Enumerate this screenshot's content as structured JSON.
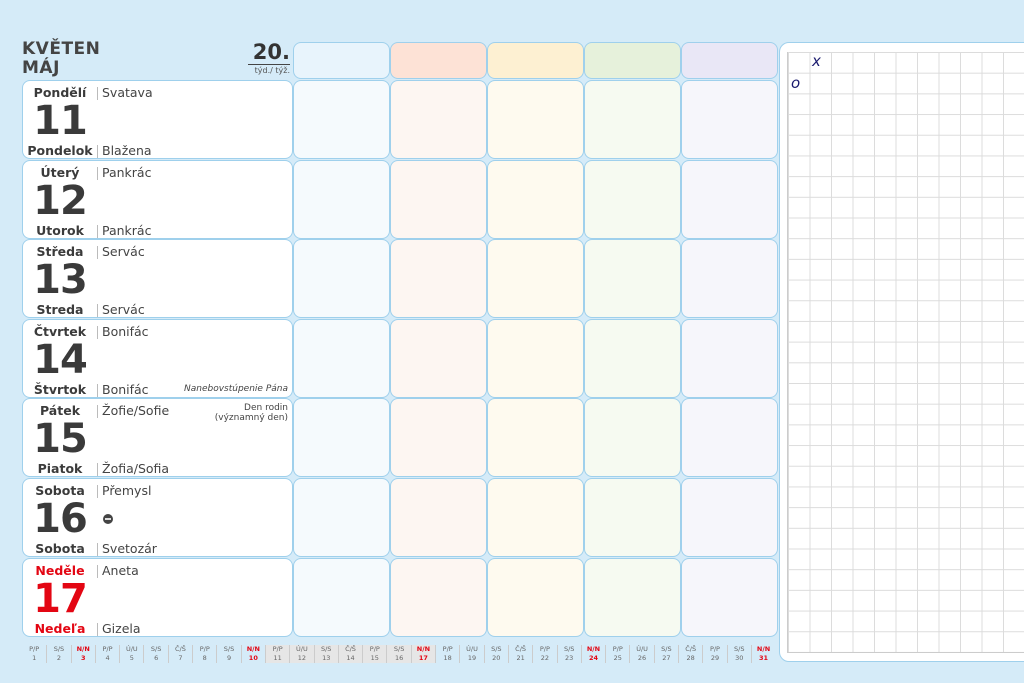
{
  "header": {
    "month_cz": "KVĚTEN",
    "month_sk": "MÁJ",
    "week_number": "20.",
    "week_label": "týd./ týž."
  },
  "column_colors": {
    "headers": [
      "#e8f4fc",
      "#fde2d6",
      "#fdf0d2",
      "#e6f1db",
      "#e9e7f6"
    ],
    "cells": [
      "#f5fafd",
      "#fdf6f2",
      "#fefaef",
      "#f6faf1",
      "#f6f6fb"
    ]
  },
  "days": [
    {
      "name_cz": "Pondělí",
      "name_sk": "Pondelok",
      "number": "11",
      "nameday_cz": "Svatava",
      "nameday_sk": "Blažena",
      "sunday": false
    },
    {
      "name_cz": "Úterý",
      "name_sk": "Utorok",
      "number": "12",
      "nameday_cz": "Pankrác",
      "nameday_sk": "Pankrác",
      "sunday": false
    },
    {
      "name_cz": "Středa",
      "name_sk": "Streda",
      "number": "13",
      "nameday_cz": "Servác",
      "nameday_sk": "Servác",
      "sunday": false
    },
    {
      "name_cz": "Čtvrtek",
      "name_sk": "Štvrtok",
      "number": "14",
      "nameday_cz": "Bonifác",
      "nameday_sk": "Bonifác",
      "note_bottom": "Nanebovstúpenie Pána",
      "sunday": false
    },
    {
      "name_cz": "Pátek",
      "name_sk": "Piatok",
      "number": "15",
      "nameday_cz": "Žofie/Sofie",
      "nameday_sk": "Žofia/Sofia",
      "note_top": "Den rodin",
      "note_top2": "(významný den)",
      "sunday": false
    },
    {
      "name_cz": "Sobota",
      "name_sk": "Sobota",
      "number": "16",
      "nameday_cz": "Přemysl",
      "nameday_sk": "Svetozár",
      "icon": "full-moon-icon",
      "sunday": false
    },
    {
      "name_cz": "Neděle",
      "name_sk": "Nedeľa",
      "number": "17",
      "nameday_cz": "Aneta",
      "nameday_sk": "Gizela",
      "sunday": true
    }
  ],
  "grid_marks": {
    "x": "x",
    "o": "o"
  },
  "month_strip": [
    [
      "P/P",
      "1"
    ],
    [
      "S/S",
      "2"
    ],
    [
      "N/N",
      "3"
    ],
    [
      "P/P",
      "4"
    ],
    [
      "Ú/U",
      "5"
    ],
    [
      "S/S",
      "6"
    ],
    [
      "Č/Š",
      "7"
    ],
    [
      "P/P",
      "8"
    ],
    [
      "S/S",
      "9"
    ],
    [
      "N/N",
      "10"
    ],
    [
      "P/P",
      "11"
    ],
    [
      "Ú/U",
      "12"
    ],
    [
      "S/S",
      "13"
    ],
    [
      "Č/Š",
      "14"
    ],
    [
      "P/P",
      "15"
    ],
    [
      "S/S",
      "16"
    ],
    [
      "N/N",
      "17"
    ],
    [
      "P/P",
      "18"
    ],
    [
      "Ú/U",
      "19"
    ],
    [
      "S/S",
      "20"
    ],
    [
      "Č/Š",
      "21"
    ],
    [
      "P/P",
      "22"
    ],
    [
      "S/S",
      "23"
    ],
    [
      "N/N",
      "24"
    ],
    [
      "P/P",
      "25"
    ],
    [
      "Ú/U",
      "26"
    ],
    [
      "S/S",
      "27"
    ],
    [
      "Č/Š",
      "28"
    ],
    [
      "P/P",
      "29"
    ],
    [
      "S/S",
      "30"
    ],
    [
      "N/N",
      "31"
    ]
  ],
  "current_week_days": [
    "11",
    "12",
    "13",
    "14",
    "15",
    "16",
    "17"
  ]
}
